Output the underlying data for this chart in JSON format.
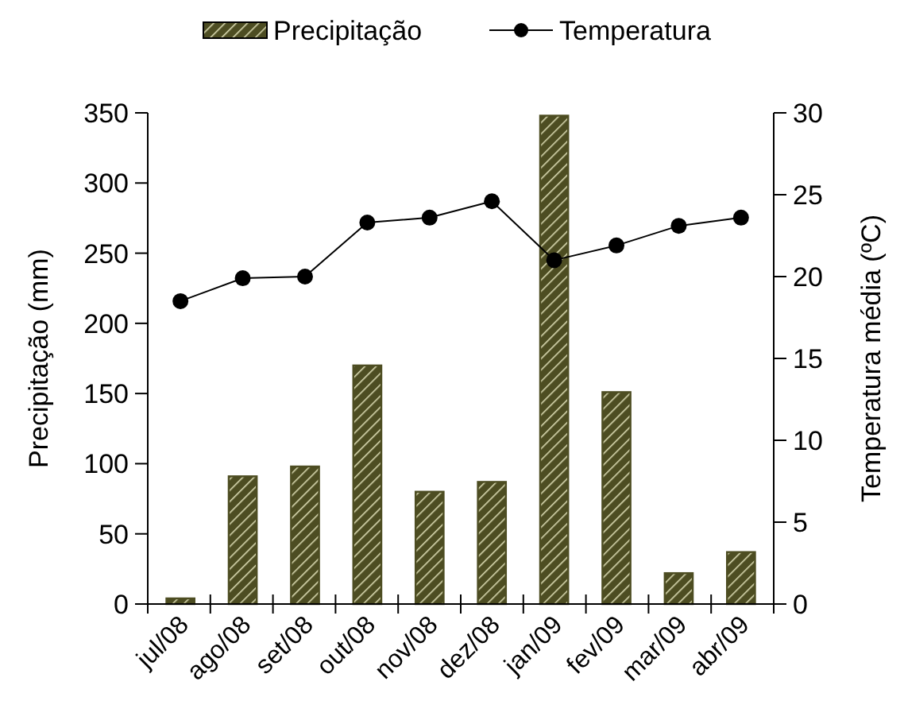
{
  "chart_data": {
    "type": "bar",
    "categories": [
      "jul/08",
      "ago/08",
      "set/08",
      "out/08",
      "nov/08",
      "dez/08",
      "jan/09",
      "fev/09",
      "mar/09",
      "abr/09"
    ],
    "ylabel": "Precipitação (mm)",
    "y2label": "Temperatura média (ºC)",
    "series": [
      {
        "name": "Precipitação",
        "color": "#4d4d22",
        "values": [
          4,
          91,
          98,
          170,
          80,
          87,
          348,
          151,
          22,
          37
        ]
      },
      {
        "name": "Temperatura",
        "type": "line",
        "axis": "y2",
        "color": "#000000",
        "marker": "circle",
        "values": [
          18.5,
          19.9,
          20.0,
          23.3,
          23.6,
          24.6,
          21.0,
          21.9,
          23.1,
          23.6
        ]
      }
    ],
    "ylim": [
      0,
      350
    ],
    "yticks": [
      0,
      50,
      100,
      150,
      200,
      250,
      300,
      350
    ],
    "y2lim": [
      0,
      30
    ],
    "y2ticks": [
      0,
      5,
      10,
      15,
      20,
      25,
      30
    ],
    "legend": "top",
    "grid": false
  }
}
